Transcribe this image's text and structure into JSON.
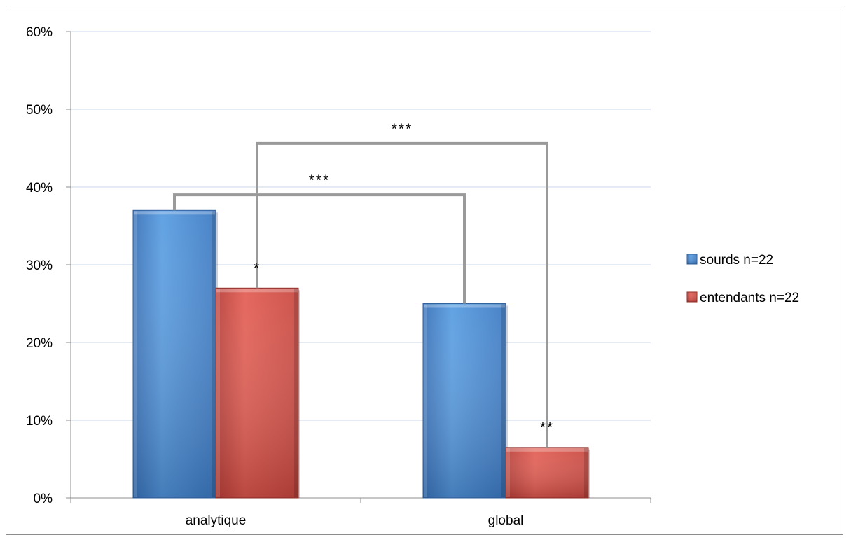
{
  "chart_data": {
    "type": "bar",
    "title": "",
    "xlabel": "",
    "ylabel": "",
    "categories": [
      "analytique",
      "global"
    ],
    "series": [
      {
        "name": "sourds n=22",
        "values": [
          0.37,
          0.25
        ],
        "color": "#4f8fd6"
      },
      {
        "name": "entendants n=22",
        "values": [
          0.27,
          0.065
        ],
        "color": "#d9534a"
      }
    ],
    "ylim": [
      0,
      0.6
    ],
    "yticks": [
      "0%",
      "10%",
      "20%",
      "30%",
      "40%",
      "50%",
      "60%"
    ],
    "ytick_values": [
      0,
      0.1,
      0.2,
      0.3,
      0.4,
      0.5,
      0.6
    ],
    "grid": true,
    "legend_position": "right",
    "annotations": {
      "bar_marks": [
        {
          "category": "analytique",
          "series": "entendants n=22",
          "text": "*"
        },
        {
          "category": "global",
          "series": "entendants n=22",
          "text": "**"
        }
      ],
      "brackets": [
        {
          "from": {
            "category": "analytique",
            "series": "sourds n=22"
          },
          "to": {
            "category": "global",
            "series": "sourds n=22"
          },
          "level": 0.39,
          "text": "***"
        },
        {
          "from": {
            "category": "analytique",
            "series": "entendants n=22"
          },
          "to": {
            "category": "global",
            "series": "entendants n=22"
          },
          "level": 0.456,
          "text": "***"
        }
      ]
    }
  }
}
